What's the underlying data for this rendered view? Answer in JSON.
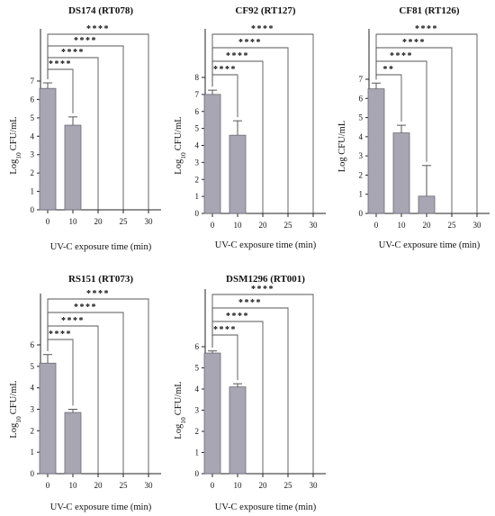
{
  "colors": {
    "bar_fill": "#a8a6b2",
    "bar_stroke": "#6b6975",
    "axis": "#222222",
    "bracket": "#555555"
  },
  "chart_data": [
    {
      "type": "bar",
      "title": "DS174 (RT078)",
      "xlabel": "UV-C exposure time (min)",
      "ylabel": "Log10 CFU/mL",
      "categories": [
        "0",
        "10",
        "20",
        "25",
        "30"
      ],
      "values": [
        6.6,
        4.6,
        0,
        0,
        0
      ],
      "errors": [
        0.3,
        0.45,
        0,
        0,
        0
      ],
      "ylim": [
        0,
        7
      ],
      "yticks": [
        "0",
        "1",
        "2",
        "3",
        "4",
        "5",
        "6",
        "7"
      ],
      "comparisons": [
        {
          "from": "0",
          "to": "10",
          "label": "****"
        },
        {
          "from": "0",
          "to": "20",
          "label": "****"
        },
        {
          "from": "0",
          "to": "25",
          "label": "****"
        },
        {
          "from": "0",
          "to": "30",
          "label": "****"
        }
      ]
    },
    {
      "type": "bar",
      "title": "CF92 (RT127)",
      "xlabel": "UV-C exposure time (min)",
      "ylabel": "Log10 CFU/mL",
      "categories": [
        "0",
        "10",
        "20",
        "25",
        "30"
      ],
      "values": [
        7.0,
        4.6,
        0,
        0,
        0
      ],
      "errors": [
        0.25,
        0.85,
        0,
        0,
        0
      ],
      "ylim": [
        0,
        8
      ],
      "yticks": [
        "0",
        "1",
        "2",
        "3",
        "4",
        "5",
        "6",
        "7",
        "8"
      ],
      "comparisons": [
        {
          "from": "0",
          "to": "10",
          "label": "****"
        },
        {
          "from": "0",
          "to": "20",
          "label": "****"
        },
        {
          "from": "0",
          "to": "25",
          "label": "****"
        },
        {
          "from": "0",
          "to": "30",
          "label": "****"
        }
      ]
    },
    {
      "type": "bar",
      "title": "CF81 (RT126)",
      "xlabel": "UV-C exposure time (min)",
      "ylabel": "Log CFU/mL",
      "categories": [
        "0",
        "10",
        "20",
        "25",
        "30"
      ],
      "values": [
        6.5,
        4.2,
        0.9,
        0,
        0
      ],
      "errors": [
        0.3,
        0.4,
        1.6,
        0,
        0
      ],
      "ylim": [
        0,
        7
      ],
      "yticks": [
        "0",
        "1",
        "2",
        "3",
        "4",
        "5",
        "6",
        "7"
      ],
      "comparisons": [
        {
          "from": "0",
          "to": "10",
          "label": "**"
        },
        {
          "from": "0",
          "to": "20",
          "label": "****"
        },
        {
          "from": "0",
          "to": "25",
          "label": "****"
        },
        {
          "from": "0",
          "to": "30",
          "label": "****"
        }
      ]
    },
    {
      "type": "bar",
      "title": "RS151 (RT073)",
      "xlabel": "UV-C exposure time (min)",
      "ylabel": "Log10 CFU/mL",
      "categories": [
        "0",
        "10",
        "20",
        "25",
        "30"
      ],
      "values": [
        5.15,
        2.85,
        0,
        0,
        0
      ],
      "errors": [
        0.4,
        0.15,
        0,
        0,
        0
      ],
      "ylim": [
        0,
        6
      ],
      "yticks": [
        "0",
        "1",
        "2",
        "3",
        "4",
        "5",
        "6"
      ],
      "comparisons": [
        {
          "from": "0",
          "to": "10",
          "label": "****"
        },
        {
          "from": "0",
          "to": "20",
          "label": "****"
        },
        {
          "from": "0",
          "to": "25",
          "label": "****"
        },
        {
          "from": "0",
          "to": "30",
          "label": "****"
        }
      ]
    },
    {
      "type": "bar",
      "title": "DSM1296 (RT001)",
      "xlabel": "UV-C exposure time (min)",
      "ylabel": "Log10 CFU/mL",
      "categories": [
        "0",
        "10",
        "20",
        "25",
        "30"
      ],
      "values": [
        5.7,
        4.1,
        0,
        0,
        0
      ],
      "errors": [
        0.1,
        0.15,
        0,
        0,
        0
      ],
      "ylim": [
        0,
        6
      ],
      "yticks": [
        "0",
        "1",
        "2",
        "3",
        "4",
        "5",
        "6"
      ],
      "comparisons": [
        {
          "from": "0",
          "to": "10",
          "label": "****"
        },
        {
          "from": "0",
          "to": "20",
          "label": "****"
        },
        {
          "from": "0",
          "to": "25",
          "label": "****"
        },
        {
          "from": "0",
          "to": "30",
          "label": "****"
        }
      ]
    }
  ]
}
